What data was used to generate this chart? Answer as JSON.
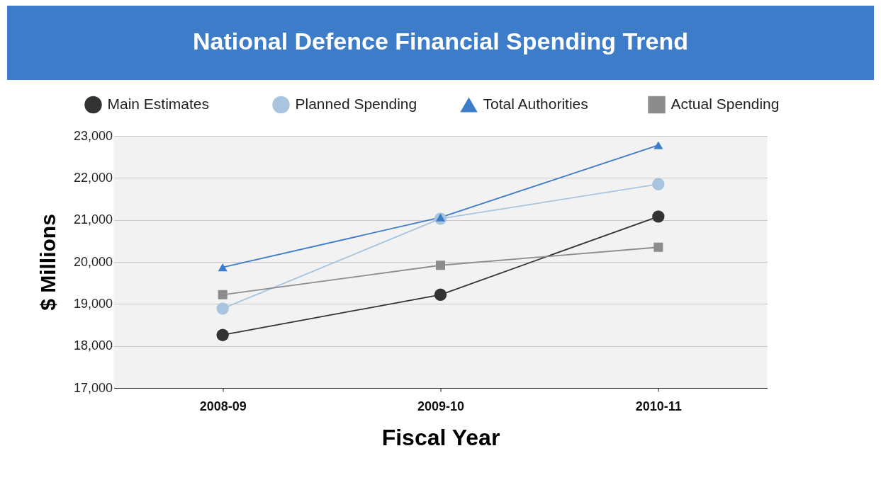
{
  "chart_data": {
    "type": "line",
    "title": "National Defence Financial Spending Trend",
    "xlabel": "Fiscal Year",
    "ylabel": "$ Millions",
    "categories": [
      "2008-09",
      "2009-10",
      "2010-11"
    ],
    "series": [
      {
        "name": "Main Estimates",
        "color": "#333333",
        "marker": "circle",
        "values": [
          18260,
          19220,
          21080
        ]
      },
      {
        "name": "Planned Spending",
        "color": "#a9c4de",
        "marker": "circle",
        "values": [
          18890,
          21030,
          21850
        ]
      },
      {
        "name": "Total Authorities",
        "color": "#3d7cc9",
        "marker": "triangle",
        "values": [
          19870,
          21060,
          22780
        ]
      },
      {
        "name": "Actual Spending",
        "color": "#8c8c8c",
        "marker": "square",
        "values": [
          19220,
          19920,
          20350
        ]
      }
    ],
    "ylim": [
      17000,
      23000
    ],
    "yticks": [
      {
        "value": 17000,
        "label": "17,000"
      },
      {
        "value": 18000,
        "label": "18,000"
      },
      {
        "value": 19000,
        "label": "19,000"
      },
      {
        "value": 20000,
        "label": "20,000"
      },
      {
        "value": 21000,
        "label": "21,000"
      },
      {
        "value": 22000,
        "label": "22,000"
      },
      {
        "value": 23000,
        "label": "23,000"
      }
    ],
    "grid": "y",
    "legend": "top",
    "line_style": "solid"
  }
}
